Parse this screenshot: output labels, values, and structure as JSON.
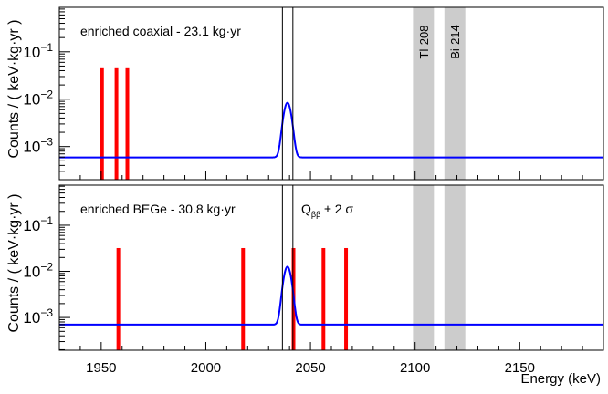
{
  "chart_data": [
    {
      "type": "line",
      "panel": "top",
      "label": "enriched coaxial - 23.1 kg·yr",
      "ylabel": "Counts / ( keV·kg·yr )",
      "xlabel": "",
      "xlim": [
        1930,
        2190
      ],
      "ylim": [
        0.0002,
        0.87
      ],
      "yscale": "log",
      "ytick_labels": [
        {
          "exp": -1,
          "text": "10",
          "sup": "−1"
        },
        {
          "exp": -2,
          "text": "10",
          "sup": "−2"
        },
        {
          "exp": -3,
          "text": "10",
          "sup": "−3"
        }
      ],
      "events_keV": [
        1950.4,
        1957.3,
        1962.5
      ],
      "event_marker_height": 0.045,
      "background_level": 0.00059,
      "signal_peak": {
        "center_keV": 2039,
        "sigma_keV": 1.6,
        "peak_value": 0.0084
      },
      "window_keV": [
        2036.6,
        2041.6
      ],
      "bands": [
        {
          "name": "Tl-208",
          "range_keV": [
            2099,
            2109
          ]
        },
        {
          "name": "Bi-214",
          "range_keV": [
            2114,
            2124
          ]
        }
      ]
    },
    {
      "type": "line",
      "panel": "bottom",
      "label": "enriched BEGe - 30.8 kg·yr",
      "window_label": {
        "q": "Q",
        "sub": "ββ",
        "rest": " ± 2 σ"
      },
      "ylabel": "Counts / ( keV·kg·yr )",
      "xlabel": "Energy (keV)",
      "xlim": [
        1930,
        2190
      ],
      "xticks": [
        1950,
        2000,
        2050,
        2100,
        2150
      ],
      "xtick_labels": [
        "1950",
        "2000",
        "2050",
        "2100",
        "2150"
      ],
      "ylim": [
        0.000195,
        0.74
      ],
      "yscale": "log",
      "ytick_labels": [
        {
          "exp": -1,
          "text": "10",
          "sup": "−1"
        },
        {
          "exp": -2,
          "text": "10",
          "sup": "−2"
        },
        {
          "exp": -3,
          "text": "10",
          "sup": "−3"
        }
      ],
      "events_keV": [
        1958.2,
        2017.8,
        2041.9,
        2056.2,
        2067.0
      ],
      "event_marker_height": 0.032,
      "background_level": 0.0007,
      "signal_peak": {
        "center_keV": 2039,
        "sigma_keV": 1.6,
        "peak_value": 0.0126
      },
      "window_keV": [
        2036.6,
        2041.6
      ],
      "bands": [
        {
          "name": "Tl-208",
          "range_keV": [
            2099,
            2109
          ]
        },
        {
          "name": "Bi-214",
          "range_keV": [
            2114,
            2124
          ]
        }
      ]
    }
  ],
  "colors": {
    "events": "#ff0000",
    "model": "#0000ff",
    "bands": "#cccccc",
    "frame": "#000000"
  }
}
